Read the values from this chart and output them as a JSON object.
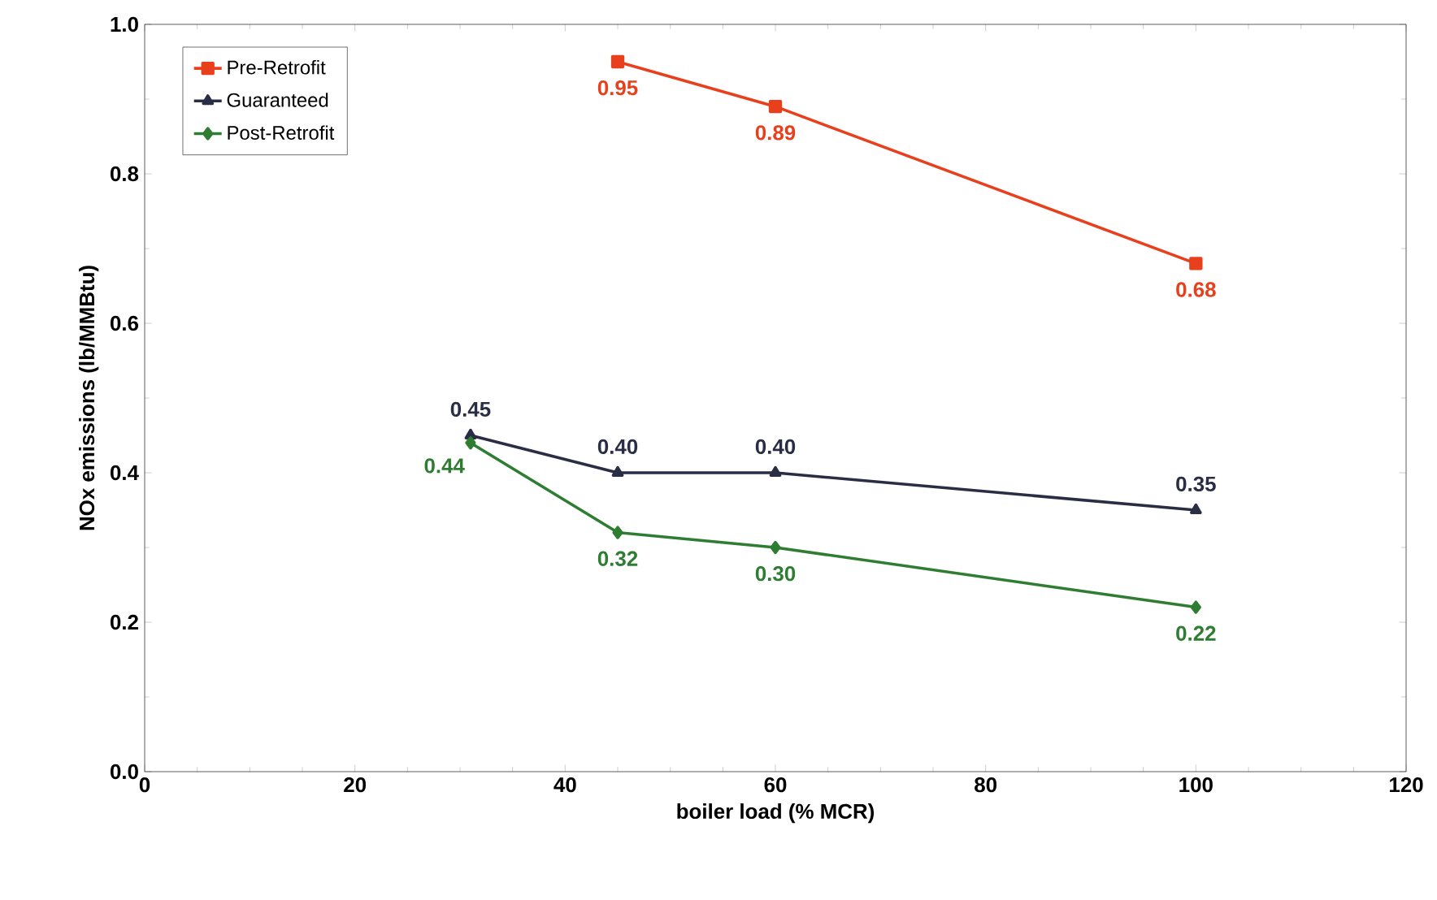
{
  "chart_data": {
    "type": "line",
    "xlabel": "boiler load (% MCR)",
    "ylabel": "NOx emissions (lb/MMBtu)",
    "xlim": [
      0,
      120
    ],
    "xticks": [
      0,
      20,
      40,
      60,
      80,
      100,
      120
    ],
    "ylim": [
      0,
      1
    ],
    "yticks": [
      {
        "value": 0,
        "label": "0.0"
      },
      0.2,
      0.4,
      0.6,
      0.8,
      {
        "value": 1,
        "label": "1.0"
      }
    ],
    "grid": false,
    "legend": "top left",
    "line_style": "solid",
    "series": [
      {
        "name": "Pre-Retrofit",
        "color": "#e8401c",
        "marker": "square",
        "x": [
          45,
          60,
          100
        ],
        "values": [
          0.95,
          0.89,
          0.68
        ],
        "value_labels": [
          "0.95",
          "0.89",
          "0.68"
        ]
      },
      {
        "name": "Guaranteed",
        "color": "#2a2e45",
        "marker": "triangle",
        "x": [
          31,
          45,
          60,
          100
        ],
        "values": [
          0.45,
          0.4,
          0.4,
          0.35
        ],
        "value_labels": [
          "0.45",
          "0.40",
          "0.40",
          "0.35"
        ]
      },
      {
        "name": "Post-Retrofit",
        "color": "#2e7d32",
        "marker": "diamond",
        "x": [
          31,
          45,
          60,
          100
        ],
        "values": [
          0.44,
          0.32,
          0.3,
          0.22
        ],
        "value_labels": [
          "0.44",
          "0.32",
          "0.30",
          "0.22"
        ]
      }
    ]
  }
}
